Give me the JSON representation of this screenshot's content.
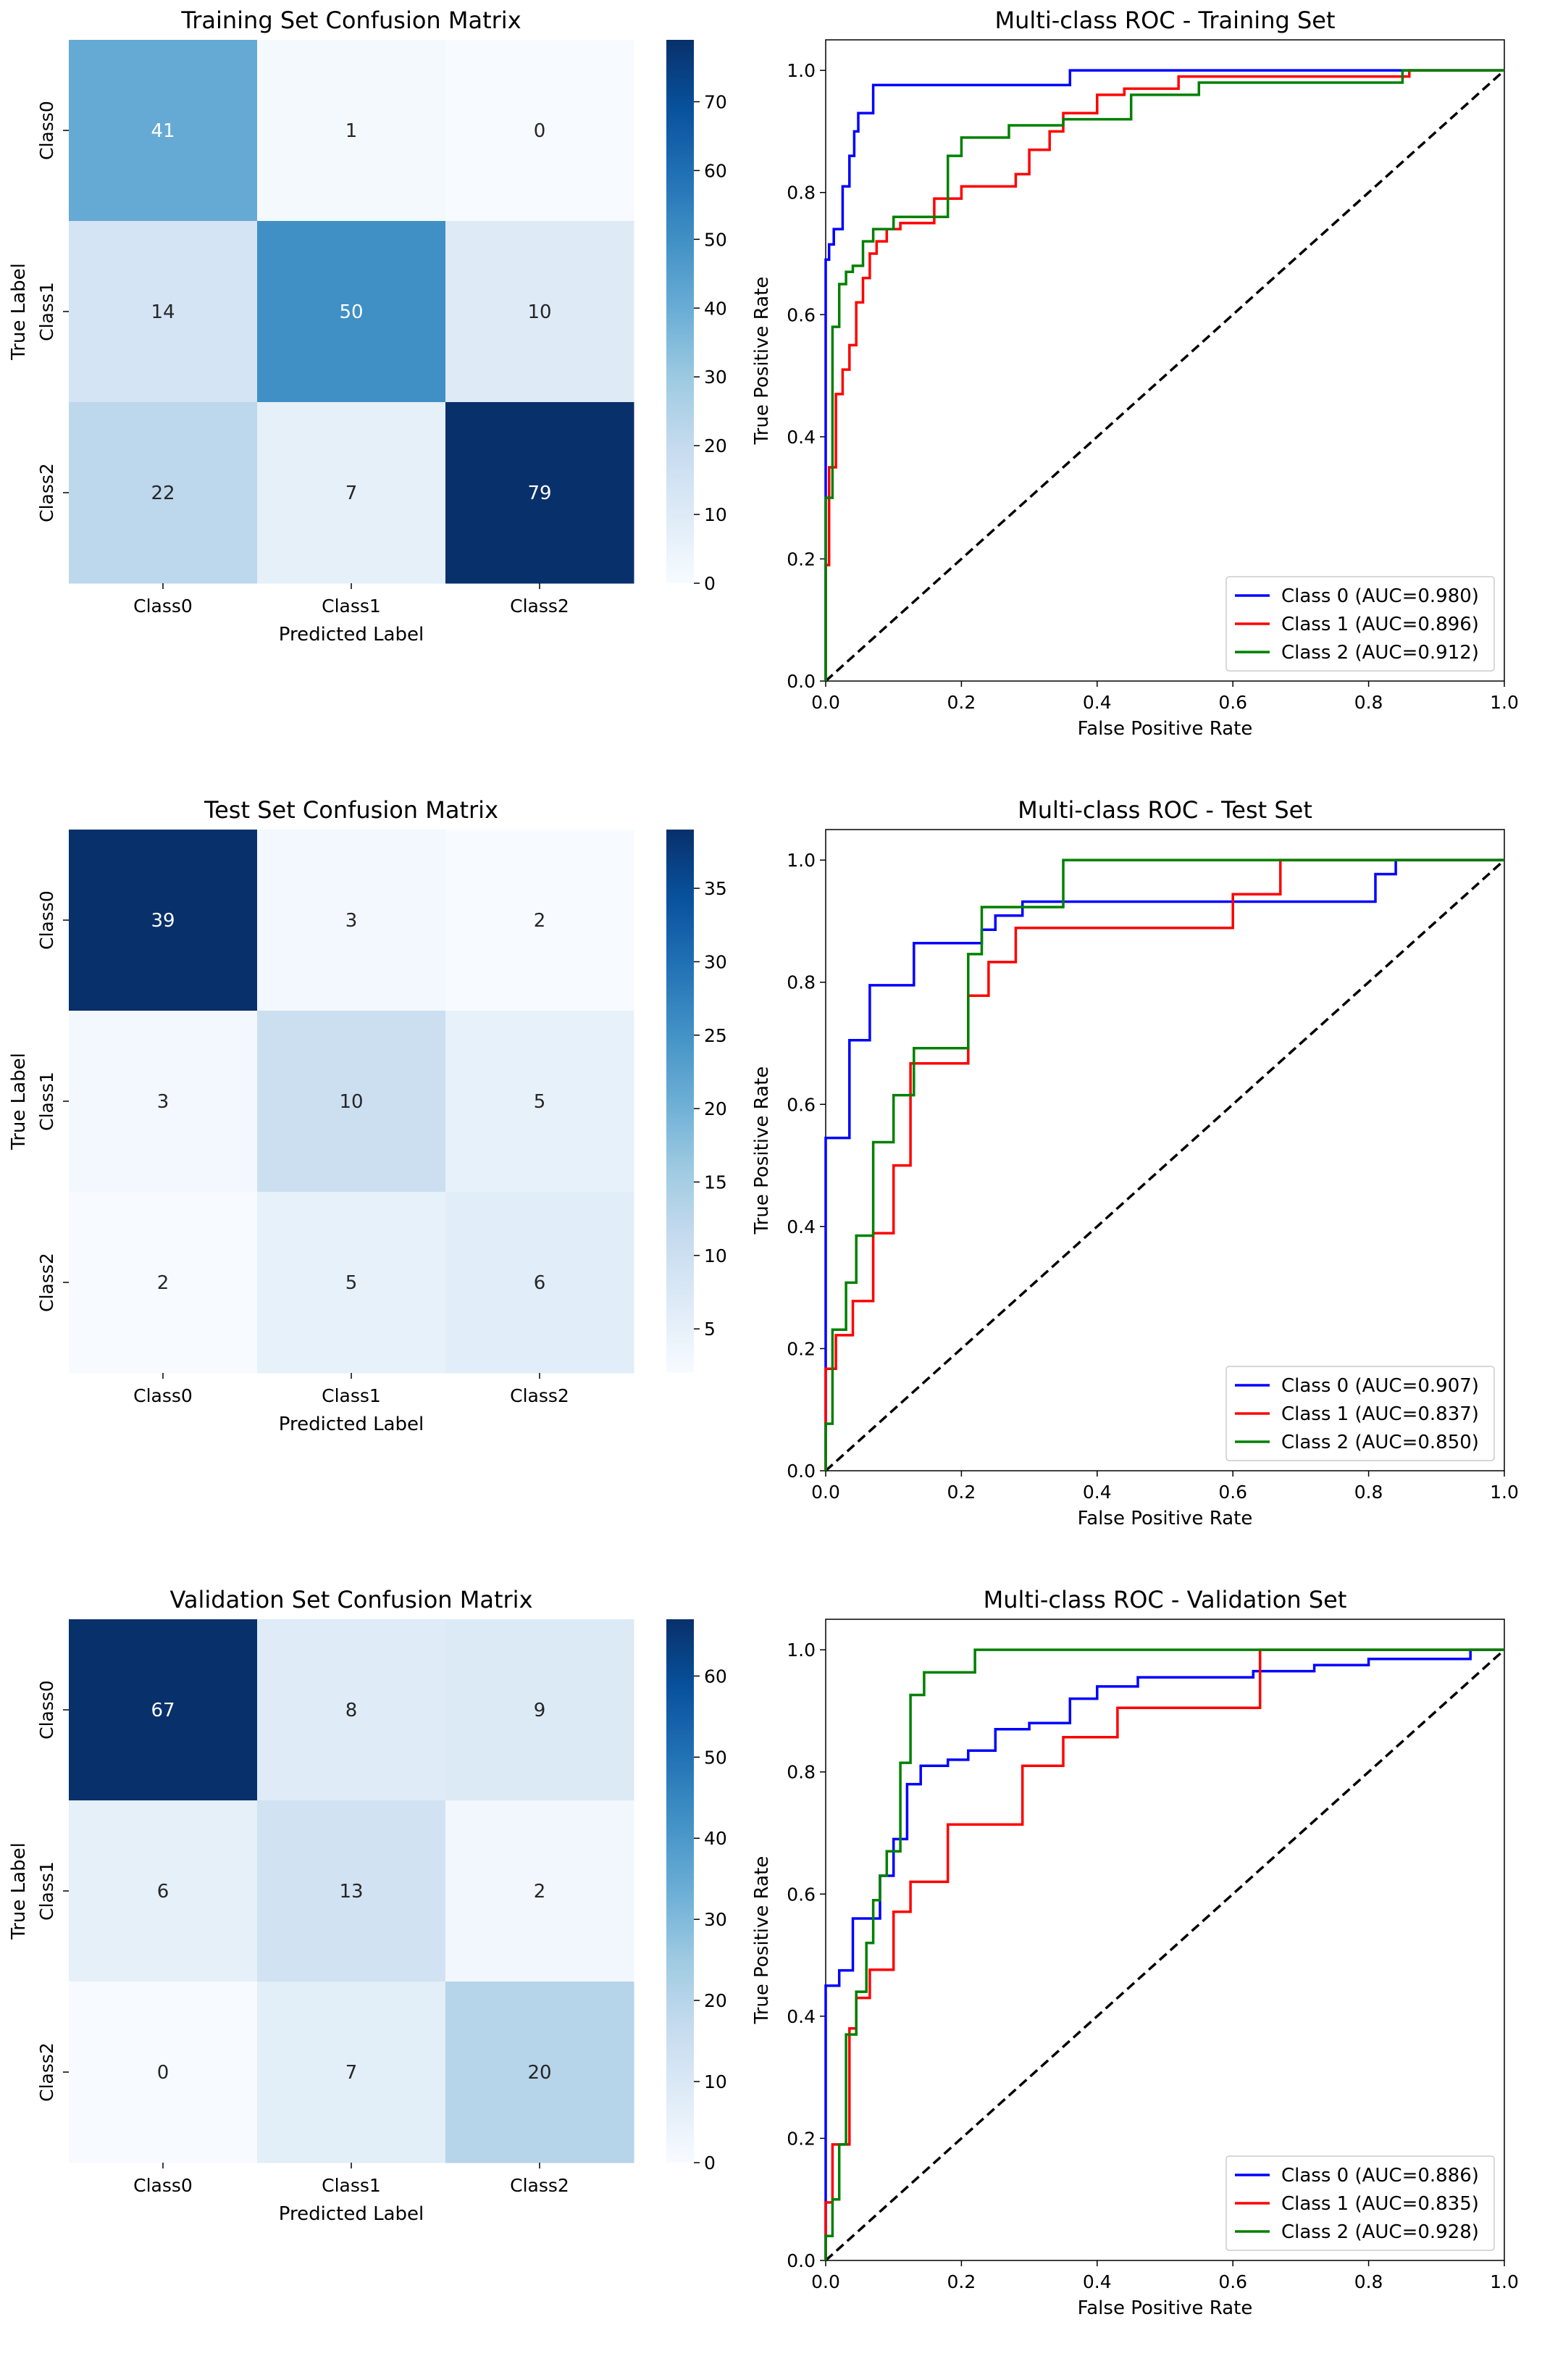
{
  "chart_data": [
    {
      "type": "heatmap",
      "title": "Training Set Confusion Matrix",
      "xlabel": "Predicted Label",
      "ylabel": "True Label",
      "x_categories": [
        "Class0",
        "Class1",
        "Class2"
      ],
      "y_categories": [
        "Class0",
        "Class1",
        "Class2"
      ],
      "values": [
        [
          41,
          1,
          0
        ],
        [
          14,
          50,
          10
        ],
        [
          22,
          7,
          79
        ]
      ],
      "colorbar": {
        "min": 0,
        "max": 79,
        "ticks": [
          0,
          10,
          20,
          30,
          40,
          50,
          60,
          70
        ]
      },
      "colormap": "Blues"
    },
    {
      "type": "line",
      "title": "Multi-class ROC - Training Set",
      "xlabel": "False Positive Rate",
      "ylabel": "True Positive Rate",
      "xlim": [
        0,
        1
      ],
      "ylim": [
        0,
        1.05
      ],
      "xticks": [
        "0.0",
        "0.2",
        "0.4",
        "0.6",
        "0.8",
        "1.0"
      ],
      "yticks": [
        "0.0",
        "0.2",
        "0.4",
        "0.6",
        "0.8",
        "1.0"
      ],
      "legend_position": "lower-right",
      "diagonal": true,
      "series": [
        {
          "name": "Class 0 (AUC=0.980)",
          "color": "#0000ff",
          "x": [
            0,
            0,
            0.005,
            0.005,
            0.012,
            0.012,
            0.025,
            0.025,
            0.035,
            0.035,
            0.042,
            0.042,
            0.048,
            0.048,
            0.055,
            0.055,
            0.07,
            0.07,
            0.36,
            0.36,
            0.63,
            0.63,
            1.0
          ],
          "y": [
            0,
            0.69,
            0.69,
            0.715,
            0.715,
            0.74,
            0.74,
            0.81,
            0.81,
            0.86,
            0.86,
            0.9,
            0.9,
            0.93,
            0.93,
            0.93,
            0.93,
            0.976,
            0.976,
            1.0,
            1.0,
            1.0,
            1.0
          ]
        },
        {
          "name": "Class 1 (AUC=0.896)",
          "color": "#ff0000",
          "x": [
            0,
            0,
            0.005,
            0.005,
            0.015,
            0.015,
            0.025,
            0.025,
            0.035,
            0.035,
            0.045,
            0.045,
            0.055,
            0.055,
            0.065,
            0.065,
            0.075,
            0.075,
            0.09,
            0.09,
            0.11,
            0.11,
            0.16,
            0.16,
            0.2,
            0.2,
            0.28,
            0.28,
            0.3,
            0.3,
            0.33,
            0.33,
            0.35,
            0.35,
            0.4,
            0.4,
            0.44,
            0.44,
            0.52,
            0.52,
            0.86,
            0.86,
            1.0
          ],
          "y": [
            0,
            0.19,
            0.19,
            0.35,
            0.35,
            0.47,
            0.47,
            0.51,
            0.51,
            0.55,
            0.55,
            0.62,
            0.62,
            0.66,
            0.66,
            0.7,
            0.7,
            0.72,
            0.72,
            0.74,
            0.74,
            0.75,
            0.75,
            0.79,
            0.79,
            0.81,
            0.81,
            0.83,
            0.83,
            0.87,
            0.87,
            0.9,
            0.9,
            0.93,
            0.93,
            0.96,
            0.96,
            0.97,
            0.97,
            0.99,
            0.99,
            1.0,
            1.0
          ]
        },
        {
          "name": "Class 2 (AUC=0.912)",
          "color": "#008000",
          "x": [
            0,
            0,
            0.01,
            0.01,
            0.02,
            0.02,
            0.03,
            0.03,
            0.04,
            0.04,
            0.055,
            0.055,
            0.07,
            0.07,
            0.1,
            0.1,
            0.18,
            0.18,
            0.2,
            0.2,
            0.27,
            0.27,
            0.35,
            0.35,
            0.45,
            0.45,
            0.55,
            0.55,
            0.85,
            0.85,
            1.0
          ],
          "y": [
            0,
            0.3,
            0.3,
            0.58,
            0.58,
            0.65,
            0.65,
            0.67,
            0.67,
            0.68,
            0.68,
            0.72,
            0.72,
            0.74,
            0.74,
            0.76,
            0.76,
            0.86,
            0.86,
            0.89,
            0.89,
            0.91,
            0.91,
            0.92,
            0.92,
            0.96,
            0.96,
            0.98,
            0.98,
            1.0,
            1.0
          ]
        }
      ]
    },
    {
      "type": "heatmap",
      "title": "Test Set Confusion Matrix",
      "xlabel": "Predicted Label",
      "ylabel": "True Label",
      "x_categories": [
        "Class0",
        "Class1",
        "Class2"
      ],
      "y_categories": [
        "Class0",
        "Class1",
        "Class2"
      ],
      "values": [
        [
          39,
          3,
          2
        ],
        [
          3,
          10,
          5
        ],
        [
          2,
          5,
          6
        ]
      ],
      "colorbar": {
        "min": 2,
        "max": 39,
        "ticks": [
          5,
          10,
          15,
          20,
          25,
          30,
          35
        ]
      },
      "colormap": "Blues"
    },
    {
      "type": "line",
      "title": "Multi-class ROC - Test Set",
      "xlabel": "False Positive Rate",
      "ylabel": "True Positive Rate",
      "xlim": [
        0,
        1
      ],
      "ylim": [
        0,
        1.05
      ],
      "xticks": [
        "0.0",
        "0.2",
        "0.4",
        "0.6",
        "0.8",
        "1.0"
      ],
      "yticks": [
        "0.0",
        "0.2",
        "0.4",
        "0.6",
        "0.8",
        "1.0"
      ],
      "legend_position": "lower-right",
      "diagonal": true,
      "series": [
        {
          "name": "Class 0 (AUC=0.907)",
          "color": "#0000ff",
          "x": [
            0,
            0,
            0.035,
            0.035,
            0.065,
            0.065,
            0.13,
            0.13,
            0.23,
            0.23,
            0.25,
            0.25,
            0.29,
            0.29,
            0.81,
            0.81,
            0.84,
            0.84,
            1.0
          ],
          "y": [
            0,
            0.545,
            0.545,
            0.705,
            0.705,
            0.795,
            0.795,
            0.864,
            0.864,
            0.886,
            0.886,
            0.909,
            0.909,
            0.932,
            0.932,
            0.977,
            0.977,
            1.0,
            1.0
          ]
        },
        {
          "name": "Class 1 (AUC=0.837)",
          "color": "#ff0000",
          "x": [
            0,
            0,
            0.015,
            0.015,
            0.04,
            0.04,
            0.07,
            0.07,
            0.1,
            0.1,
            0.125,
            0.125,
            0.21,
            0.21,
            0.24,
            0.24,
            0.28,
            0.28,
            0.6,
            0.6,
            0.67,
            0.67,
            1.0
          ],
          "y": [
            0,
            0.167,
            0.167,
            0.222,
            0.222,
            0.278,
            0.278,
            0.389,
            0.389,
            0.5,
            0.5,
            0.667,
            0.667,
            0.778,
            0.778,
            0.833,
            0.833,
            0.889,
            0.889,
            0.944,
            0.944,
            1.0,
            1.0
          ]
        },
        {
          "name": "Class 2 (AUC=0.850)",
          "color": "#008000",
          "x": [
            0,
            0,
            0.01,
            0.01,
            0.03,
            0.03,
            0.045,
            0.045,
            0.07,
            0.07,
            0.1,
            0.1,
            0.13,
            0.13,
            0.21,
            0.21,
            0.23,
            0.23,
            0.35,
            0.35,
            0.5,
            0.5,
            1.0
          ],
          "y": [
            0,
            0.077,
            0.077,
            0.231,
            0.231,
            0.308,
            0.308,
            0.385,
            0.385,
            0.538,
            0.538,
            0.615,
            0.615,
            0.692,
            0.692,
            0.846,
            0.846,
            0.923,
            0.923,
            1.0,
            1.0,
            1.0,
            1.0
          ]
        }
      ]
    },
    {
      "type": "heatmap",
      "title": "Validation Set Confusion Matrix",
      "xlabel": "Predicted Label",
      "ylabel": "True Label",
      "x_categories": [
        "Class0",
        "Class1",
        "Class2"
      ],
      "y_categories": [
        "Class0",
        "Class1",
        "Class2"
      ],
      "values": [
        [
          67,
          8,
          9
        ],
        [
          6,
          13,
          2
        ],
        [
          0,
          7,
          20
        ]
      ],
      "colorbar": {
        "min": 0,
        "max": 67,
        "ticks": [
          0,
          10,
          20,
          30,
          40,
          50,
          60
        ]
      },
      "colormap": "Blues"
    },
    {
      "type": "line",
      "title": "Multi-class ROC - Validation Set",
      "xlabel": "False Positive Rate",
      "ylabel": "True Positive Rate",
      "xlim": [
        0,
        1
      ],
      "ylim": [
        0,
        1.05
      ],
      "xticks": [
        "0.0",
        "0.2",
        "0.4",
        "0.6",
        "0.8",
        "1.0"
      ],
      "yticks": [
        "0.0",
        "0.2",
        "0.4",
        "0.6",
        "0.8",
        "1.0"
      ],
      "legend_position": "lower-right",
      "diagonal": true,
      "series": [
        {
          "name": "Class 0 (AUC=0.886)",
          "color": "#0000ff",
          "x": [
            0,
            0,
            0.02,
            0.02,
            0.04,
            0.04,
            0.08,
            0.08,
            0.1,
            0.1,
            0.12,
            0.12,
            0.14,
            0.14,
            0.18,
            0.18,
            0.21,
            0.21,
            0.25,
            0.25,
            0.3,
            0.3,
            0.36,
            0.36,
            0.4,
            0.4,
            0.46,
            0.46,
            0.63,
            0.63,
            0.72,
            0.72,
            0.8,
            0.8,
            0.95,
            0.95,
            1.0
          ],
          "y": [
            0,
            0.45,
            0.45,
            0.475,
            0.475,
            0.56,
            0.56,
            0.63,
            0.63,
            0.69,
            0.69,
            0.78,
            0.78,
            0.81,
            0.81,
            0.82,
            0.82,
            0.835,
            0.835,
            0.87,
            0.87,
            0.88,
            0.88,
            0.92,
            0.92,
            0.94,
            0.94,
            0.955,
            0.955,
            0.965,
            0.965,
            0.975,
            0.975,
            0.985,
            0.985,
            1.0,
            1.0
          ]
        },
        {
          "name": "Class 1 (AUC=0.835)",
          "color": "#ff0000",
          "x": [
            0,
            0,
            0.01,
            0.01,
            0.035,
            0.035,
            0.045,
            0.045,
            0.065,
            0.065,
            0.1,
            0.1,
            0.125,
            0.125,
            0.18,
            0.18,
            0.29,
            0.29,
            0.35,
            0.35,
            0.43,
            0.43,
            0.64,
            0.64,
            1.0
          ],
          "y": [
            0,
            0.095,
            0.095,
            0.19,
            0.19,
            0.38,
            0.38,
            0.43,
            0.43,
            0.476,
            0.476,
            0.571,
            0.571,
            0.62,
            0.62,
            0.714,
            0.714,
            0.81,
            0.81,
            0.857,
            0.857,
            0.905,
            0.905,
            1.0,
            1.0
          ]
        },
        {
          "name": "Class 2 (AUC=0.928)",
          "color": "#008000",
          "x": [
            0,
            0,
            0.01,
            0.01,
            0.02,
            0.02,
            0.03,
            0.03,
            0.045,
            0.045,
            0.06,
            0.06,
            0.07,
            0.07,
            0.08,
            0.08,
            0.09,
            0.09,
            0.11,
            0.11,
            0.125,
            0.125,
            0.145,
            0.145,
            0.22,
            0.22,
            1.0
          ],
          "y": [
            0,
            0.04,
            0.04,
            0.1,
            0.1,
            0.19,
            0.19,
            0.37,
            0.37,
            0.44,
            0.44,
            0.52,
            0.52,
            0.59,
            0.59,
            0.63,
            0.63,
            0.67,
            0.67,
            0.815,
            0.815,
            0.926,
            0.926,
            0.963,
            0.963,
            1.0,
            1.0
          ]
        }
      ]
    }
  ]
}
